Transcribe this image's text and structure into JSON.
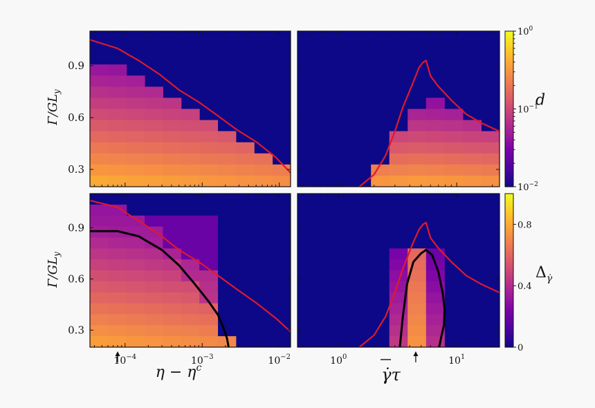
{
  "colors": {
    "colormap": [
      "#0d0887",
      "#4b03a1",
      "#7d03a8",
      "#a82296",
      "#cb4679",
      "#e56b5d",
      "#f89441",
      "#fdc328",
      "#f0f921"
    ],
    "red_line": "#e0192b",
    "black_line": "#000000"
  },
  "chart_data": [
    {
      "type": "heatmap",
      "panel": "top-left",
      "title": "",
      "xlabel": "",
      "ylabel": "Γ/GL_y",
      "xscale": "log",
      "xlim": [
        3.5e-05,
        0.014
      ],
      "ylim": [
        0.2,
        1.1
      ],
      "yticks": [
        "0.3",
        "0.6",
        "0.9"
      ],
      "color_variable": "d",
      "color_scale": "log",
      "color_range": [
        0.01,
        1
      ],
      "red_curve": {
        "x": [
          3.5e-05,
          8e-05,
          0.00015,
          0.00028,
          0.0005,
          0.0009,
          0.0016,
          0.0028,
          0.005,
          0.009,
          0.014
        ],
        "y": [
          1.05,
          1.0,
          0.93,
          0.85,
          0.76,
          0.69,
          0.61,
          0.53,
          0.46,
          0.37,
          0.28
        ]
      },
      "heat_front": {
        "x": [
          3.5e-05,
          8e-05,
          0.00015,
          0.00028,
          0.0005,
          0.0009,
          0.0016,
          0.0028,
          0.005,
          0.009,
          0.014
        ],
        "y": [
          0.92,
          0.88,
          0.83,
          0.76,
          0.68,
          0.61,
          0.54,
          0.47,
          0.4,
          0.33,
          0.27
        ]
      }
    },
    {
      "type": "heatmap",
      "panel": "top-right",
      "title": "",
      "xlabel": "",
      "ylabel": "",
      "xscale": "log",
      "xlim": [
        0.45,
        23
      ],
      "ylim": [
        0.2,
        1.1
      ],
      "color_variable": "d",
      "color_scale": "log",
      "color_range": [
        0.01,
        1
      ],
      "red_curve": {
        "x": [
          1.5,
          2.0,
          2.5,
          3.0,
          3.5,
          4.2,
          4.8,
          5.2,
          5.5,
          6.0,
          7.0,
          9.0,
          12.0,
          16.0,
          23.0
        ],
        "y": [
          0.2,
          0.27,
          0.38,
          0.52,
          0.66,
          0.79,
          0.89,
          0.92,
          0.93,
          0.84,
          0.78,
          0.7,
          0.62,
          0.57,
          0.52
        ]
      },
      "heat_front": {
        "x": [
          1.5,
          2.0,
          2.5,
          3.0,
          3.5,
          4.2,
          5.0,
          6.0,
          8.0,
          12.0,
          23.0
        ],
        "y": [
          0.2,
          0.27,
          0.37,
          0.49,
          0.59,
          0.66,
          0.7,
          0.71,
          0.66,
          0.58,
          0.5
        ]
      }
    },
    {
      "type": "heatmap",
      "panel": "bottom-left",
      "title": "",
      "xlabel": "η − η^c",
      "ylabel": "Γ/GL_y",
      "xscale": "log",
      "xlim": [
        3.5e-05,
        0.014
      ],
      "ylim": [
        0.2,
        1.1
      ],
      "xticks": [
        "10^-4",
        "10^-3",
        "10^-2"
      ],
      "yticks": [
        "0.3",
        "0.6",
        "0.9"
      ],
      "arrow_x": 8e-05,
      "color_variable": "Δ_γ̇",
      "color_scale": "linear",
      "color_range": [
        0,
        1
      ],
      "colorbar_ticks": [
        "0",
        "0.4",
        "0.8"
      ],
      "red_curve": {
        "x": [
          3.5e-05,
          8e-05,
          0.00015,
          0.00028,
          0.0005,
          0.0009,
          0.0016,
          0.0028,
          0.005,
          0.009,
          0.014
        ],
        "y": [
          1.06,
          1.02,
          0.94,
          0.86,
          0.77,
          0.7,
          0.62,
          0.54,
          0.46,
          0.37,
          0.29
        ]
      },
      "black_curve": {
        "x": [
          3.5e-05,
          8e-05,
          0.00015,
          0.0003,
          0.0005,
          0.0008,
          0.0012,
          0.0016,
          0.0019,
          0.0021,
          0.0022
        ],
        "y": [
          0.88,
          0.88,
          0.85,
          0.77,
          0.68,
          0.57,
          0.47,
          0.39,
          0.31,
          0.25,
          0.2
        ]
      }
    },
    {
      "type": "heatmap",
      "panel": "bottom-right",
      "title": "",
      "xlabel": "γ̇̄τ",
      "ylabel": "",
      "xscale": "log",
      "xlim": [
        0.45,
        23
      ],
      "ylim": [
        0.2,
        1.1
      ],
      "xticks": [
        "10^0",
        "10^1"
      ],
      "arrow_x": 4.5,
      "color_variable": "Δ_γ̇",
      "color_scale": "linear",
      "color_range": [
        0,
        1
      ],
      "red_curve": {
        "x": [
          1.5,
          2.0,
          2.5,
          3.0,
          3.5,
          4.2,
          4.8,
          5.2,
          5.5,
          6.0,
          7.0,
          9.0,
          12.0,
          16.0,
          23.0
        ],
        "y": [
          0.2,
          0.27,
          0.38,
          0.52,
          0.66,
          0.8,
          0.89,
          0.92,
          0.93,
          0.84,
          0.78,
          0.7,
          0.62,
          0.57,
          0.52
        ]
      },
      "black_curve": {
        "x": [
          3.3,
          3.5,
          3.8,
          4.3,
          5.0,
          5.5,
          6.2,
          7.0,
          7.6,
          7.9,
          7.8,
          7.4,
          7.1
        ],
        "y": [
          0.2,
          0.38,
          0.57,
          0.7,
          0.75,
          0.77,
          0.74,
          0.64,
          0.52,
          0.42,
          0.33,
          0.26,
          0.2
        ]
      }
    }
  ],
  "colorbars": [
    {
      "label": "d",
      "ticks": [
        "10^0",
        "10^-1",
        "10^-2"
      ]
    },
    {
      "label": "Δ_γ̇",
      "ticks": [
        "0.8",
        "0.4",
        "0"
      ]
    }
  ]
}
